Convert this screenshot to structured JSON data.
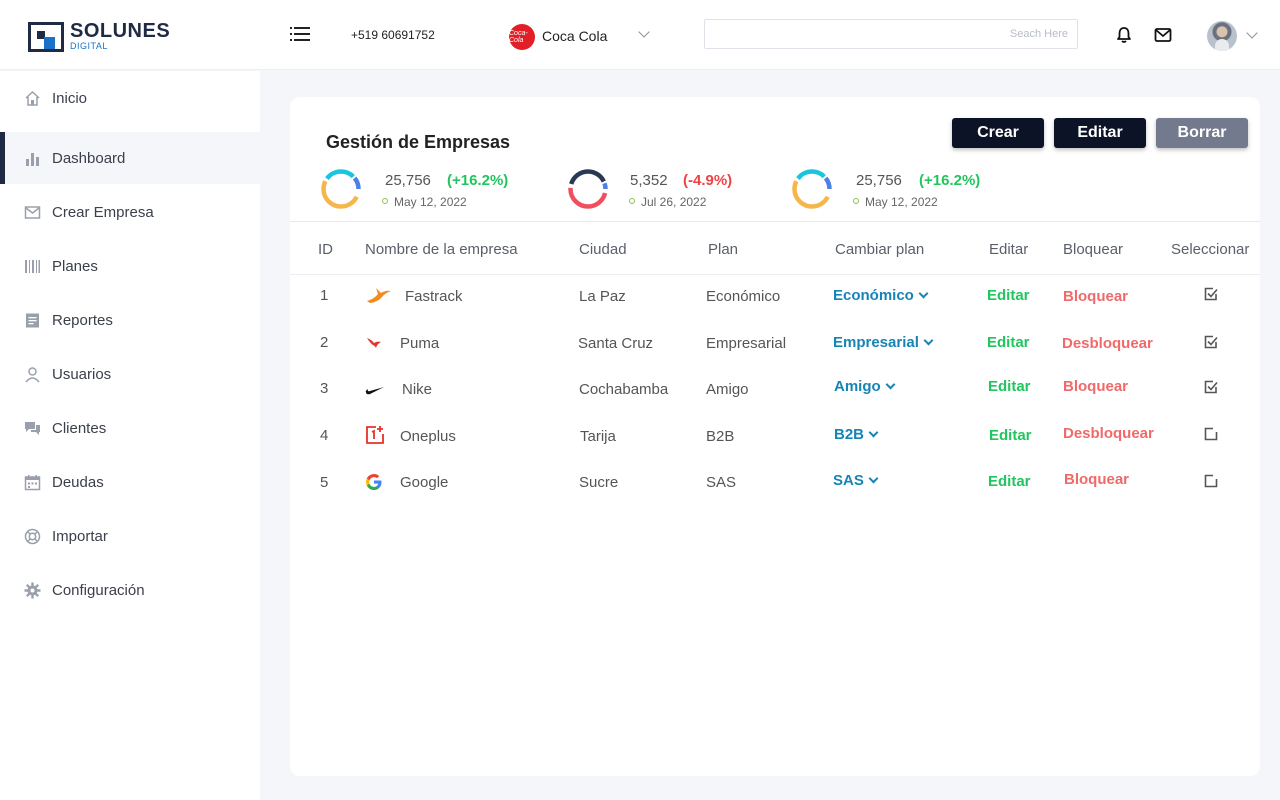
{
  "brand": {
    "name": "SOLUNES",
    "sub": "DIGITAL"
  },
  "header": {
    "phone": "+519 60691752",
    "company": "Coca Cola",
    "company_logo_text": "Coca-Cola",
    "search_placeholder": "Seach Here"
  },
  "sidebar": {
    "items": [
      {
        "label": "Inicio",
        "icon": "home-icon"
      },
      {
        "label": "Dashboard",
        "icon": "bar-chart-icon",
        "active": true
      },
      {
        "label": "Crear Empresa",
        "icon": "mail-icon"
      },
      {
        "label": "Planes",
        "icon": "barcode-icon"
      },
      {
        "label": "Reportes",
        "icon": "receipt-icon"
      },
      {
        "label": "Usuarios",
        "icon": "user-icon"
      },
      {
        "label": "Clientes",
        "icon": "chat-icon"
      },
      {
        "label": "Deudas",
        "icon": "calendar-icon"
      },
      {
        "label": "Importar",
        "icon": "globe-icon"
      },
      {
        "label": "Configuración",
        "icon": "gear-icon"
      }
    ]
  },
  "card": {
    "title": "Gestión de Empresas",
    "buttons": {
      "crear": "Crear",
      "editar": "Editar",
      "borrar": "Borrar"
    },
    "stats": [
      {
        "value": "25,756",
        "change": "(+16.2%)",
        "date": "May 12, 2022",
        "change_color": "#22c55e"
      },
      {
        "value": "5,352",
        "change": "(-4.9%)",
        "date": "Jul 26, 2022",
        "change_color": "#ef4444"
      },
      {
        "value": "25,756",
        "change": "(+16.2%)",
        "date": "May 12, 2022",
        "change_color": "#22c55e"
      }
    ],
    "columns": [
      "ID",
      "Nombre de la empresa",
      "Ciudad",
      "Plan",
      "Cambiar plan",
      "Editar",
      "Bloquear",
      "Seleccionar"
    ],
    "rows": [
      {
        "id": "1",
        "name": "Fastrack",
        "logo": "fastrack-logo-icon",
        "city": "La Paz",
        "plan": "Económico",
        "change_plan": "Económico",
        "edit": "Editar",
        "block": "Bloquear",
        "selected": true
      },
      {
        "id": "2",
        "name": "Puma",
        "logo": "puma-logo-icon",
        "city": "Santa Cruz",
        "plan": "Empresarial",
        "change_plan": "Empresarial",
        "edit": "Editar",
        "block": "Desbloquear",
        "selected": true
      },
      {
        "id": "3",
        "name": "Nike",
        "logo": "nike-logo-icon",
        "city": "Cochabamba",
        "plan": "Amigo",
        "change_plan": "Amigo",
        "edit": "Editar",
        "block": "Bloquear",
        "selected": true
      },
      {
        "id": "4",
        "name": "Oneplus",
        "logo": "oneplus-logo-icon",
        "city": "Tarija",
        "plan": "B2B",
        "change_plan": "B2B",
        "edit": "Editar",
        "block": "Desbloquear",
        "selected": false
      },
      {
        "id": "5",
        "name": "Google",
        "logo": "google-logo-icon",
        "city": "Sucre",
        "plan": "SAS",
        "change_plan": "SAS",
        "edit": "Editar",
        "block": "Bloquear",
        "selected": false
      }
    ]
  }
}
